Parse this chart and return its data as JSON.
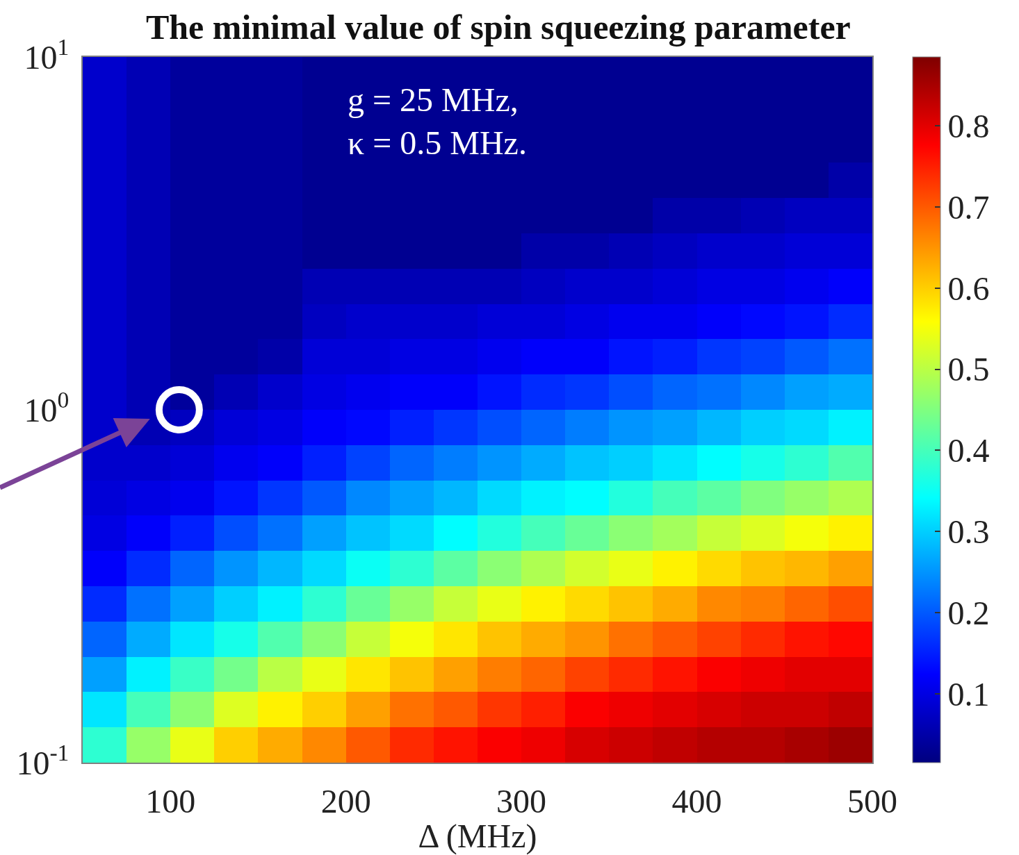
{
  "chart_data": {
    "type": "heatmap",
    "title": "The minimal value of spin squeezing parameter",
    "xlabel": "Δ (MHz)",
    "annotations": [
      "g = 25 MHz,\nκ = 0.5 MHz."
    ],
    "x": [
      62.5,
      87.5,
      112.5,
      137.5,
      162.5,
      187.5,
      212.5,
      237.5,
      262.5,
      287.5,
      312.5,
      337.5,
      362.5,
      387.5,
      412.5,
      437.5,
      462.5,
      487.5
    ],
    "cells": [
      [
        0.08,
        0.06,
        0.04,
        0.04,
        0.04,
        0.03,
        0.03,
        0.03,
        0.03,
        0.03,
        0.03,
        0.03,
        0.03,
        0.03,
        0.03,
        0.03,
        0.03,
        0.03
      ],
      [
        0.08,
        0.06,
        0.04,
        0.04,
        0.04,
        0.03,
        0.03,
        0.03,
        0.03,
        0.03,
        0.03,
        0.03,
        0.03,
        0.03,
        0.03,
        0.03,
        0.03,
        0.03
      ],
      [
        0.08,
        0.06,
        0.04,
        0.04,
        0.04,
        0.03,
        0.03,
        0.03,
        0.03,
        0.03,
        0.03,
        0.03,
        0.03,
        0.03,
        0.03,
        0.03,
        0.03,
        0.03
      ],
      [
        0.08,
        0.06,
        0.04,
        0.04,
        0.04,
        0.03,
        0.03,
        0.03,
        0.03,
        0.03,
        0.03,
        0.03,
        0.03,
        0.03,
        0.03,
        0.03,
        0.03,
        0.05
      ],
      [
        0.08,
        0.06,
        0.04,
        0.04,
        0.04,
        0.03,
        0.03,
        0.03,
        0.03,
        0.03,
        0.03,
        0.03,
        0.03,
        0.05,
        0.05,
        0.06,
        0.07,
        0.07
      ],
      [
        0.08,
        0.06,
        0.04,
        0.04,
        0.04,
        0.03,
        0.03,
        0.03,
        0.03,
        0.03,
        0.05,
        0.05,
        0.06,
        0.07,
        0.08,
        0.08,
        0.09,
        0.09
      ],
      [
        0.08,
        0.06,
        0.04,
        0.04,
        0.04,
        0.06,
        0.06,
        0.06,
        0.06,
        0.06,
        0.07,
        0.08,
        0.08,
        0.09,
        0.1,
        0.1,
        0.11,
        0.12
      ],
      [
        0.08,
        0.06,
        0.04,
        0.04,
        0.04,
        0.07,
        0.08,
        0.08,
        0.08,
        0.09,
        0.09,
        0.1,
        0.11,
        0.11,
        0.12,
        0.13,
        0.14,
        0.16
      ],
      [
        0.08,
        0.06,
        0.04,
        0.04,
        0.05,
        0.09,
        0.09,
        0.1,
        0.1,
        0.11,
        0.12,
        0.12,
        0.14,
        0.15,
        0.17,
        0.18,
        0.2,
        0.22
      ],
      [
        0.08,
        0.06,
        0.04,
        0.06,
        0.08,
        0.1,
        0.11,
        0.12,
        0.12,
        0.14,
        0.16,
        0.17,
        0.19,
        0.21,
        0.22,
        0.24,
        0.26,
        0.27
      ],
      [
        0.08,
        0.06,
        0.07,
        0.09,
        0.1,
        0.12,
        0.13,
        0.15,
        0.17,
        0.19,
        0.21,
        0.23,
        0.25,
        0.26,
        0.28,
        0.3,
        0.31,
        0.33
      ],
      [
        0.08,
        0.08,
        0.09,
        0.11,
        0.12,
        0.15,
        0.18,
        0.21,
        0.23,
        0.25,
        0.27,
        0.29,
        0.3,
        0.32,
        0.34,
        0.36,
        0.38,
        0.41
      ],
      [
        0.09,
        0.1,
        0.11,
        0.14,
        0.17,
        0.2,
        0.24,
        0.26,
        0.28,
        0.31,
        0.33,
        0.34,
        0.37,
        0.4,
        0.42,
        0.45,
        0.47,
        0.49
      ],
      [
        0.1,
        0.12,
        0.15,
        0.19,
        0.22,
        0.26,
        0.29,
        0.31,
        0.34,
        0.37,
        0.4,
        0.43,
        0.46,
        0.48,
        0.51,
        0.53,
        0.55,
        0.57
      ],
      [
        0.12,
        0.16,
        0.21,
        0.25,
        0.28,
        0.31,
        0.35,
        0.38,
        0.42,
        0.46,
        0.49,
        0.52,
        0.54,
        0.57,
        0.59,
        0.61,
        0.62,
        0.64
      ],
      [
        0.16,
        0.22,
        0.26,
        0.3,
        0.33,
        0.38,
        0.43,
        0.47,
        0.51,
        0.54,
        0.57,
        0.59,
        0.61,
        0.63,
        0.66,
        0.67,
        0.69,
        0.71
      ],
      [
        0.21,
        0.27,
        0.32,
        0.36,
        0.41,
        0.46,
        0.51,
        0.55,
        0.58,
        0.61,
        0.63,
        0.65,
        0.68,
        0.7,
        0.72,
        0.74,
        0.76,
        0.77
      ],
      [
        0.26,
        0.33,
        0.39,
        0.44,
        0.5,
        0.54,
        0.58,
        0.61,
        0.64,
        0.67,
        0.69,
        0.72,
        0.74,
        0.76,
        0.78,
        0.79,
        0.8,
        0.8
      ],
      [
        0.32,
        0.4,
        0.46,
        0.53,
        0.57,
        0.6,
        0.64,
        0.68,
        0.7,
        0.73,
        0.75,
        0.78,
        0.79,
        0.8,
        0.81,
        0.82,
        0.82,
        0.83
      ],
      [
        0.38,
        0.47,
        0.54,
        0.6,
        0.63,
        0.66,
        0.7,
        0.74,
        0.76,
        0.78,
        0.79,
        0.81,
        0.82,
        0.83,
        0.84,
        0.84,
        0.85,
        0.86
      ]
    ],
    "clim": [
      0.015,
      0.885
    ],
    "cticks": [
      0.1,
      0.2,
      0.3,
      0.4,
      0.5,
      0.6,
      0.7,
      0.8
    ],
    "xlim": [
      50,
      500
    ],
    "xticks": [
      100,
      200,
      300,
      400,
      500
    ],
    "ylim": [
      0.1,
      10
    ],
    "yticks": [
      {
        "value": 0.1,
        "label": "10$^{-1}$"
      },
      {
        "value": 1,
        "label": "10$^{0}$"
      },
      {
        "value": 10,
        "label": "10$^{1}$"
      }
    ],
    "log": "y",
    "series": [
      {
        "type": "scatter",
        "color": "#ffffff",
        "x": [
          105
        ],
        "values": [
          1
        ]
      }
    ],
    "marker": "circle"
  }
}
